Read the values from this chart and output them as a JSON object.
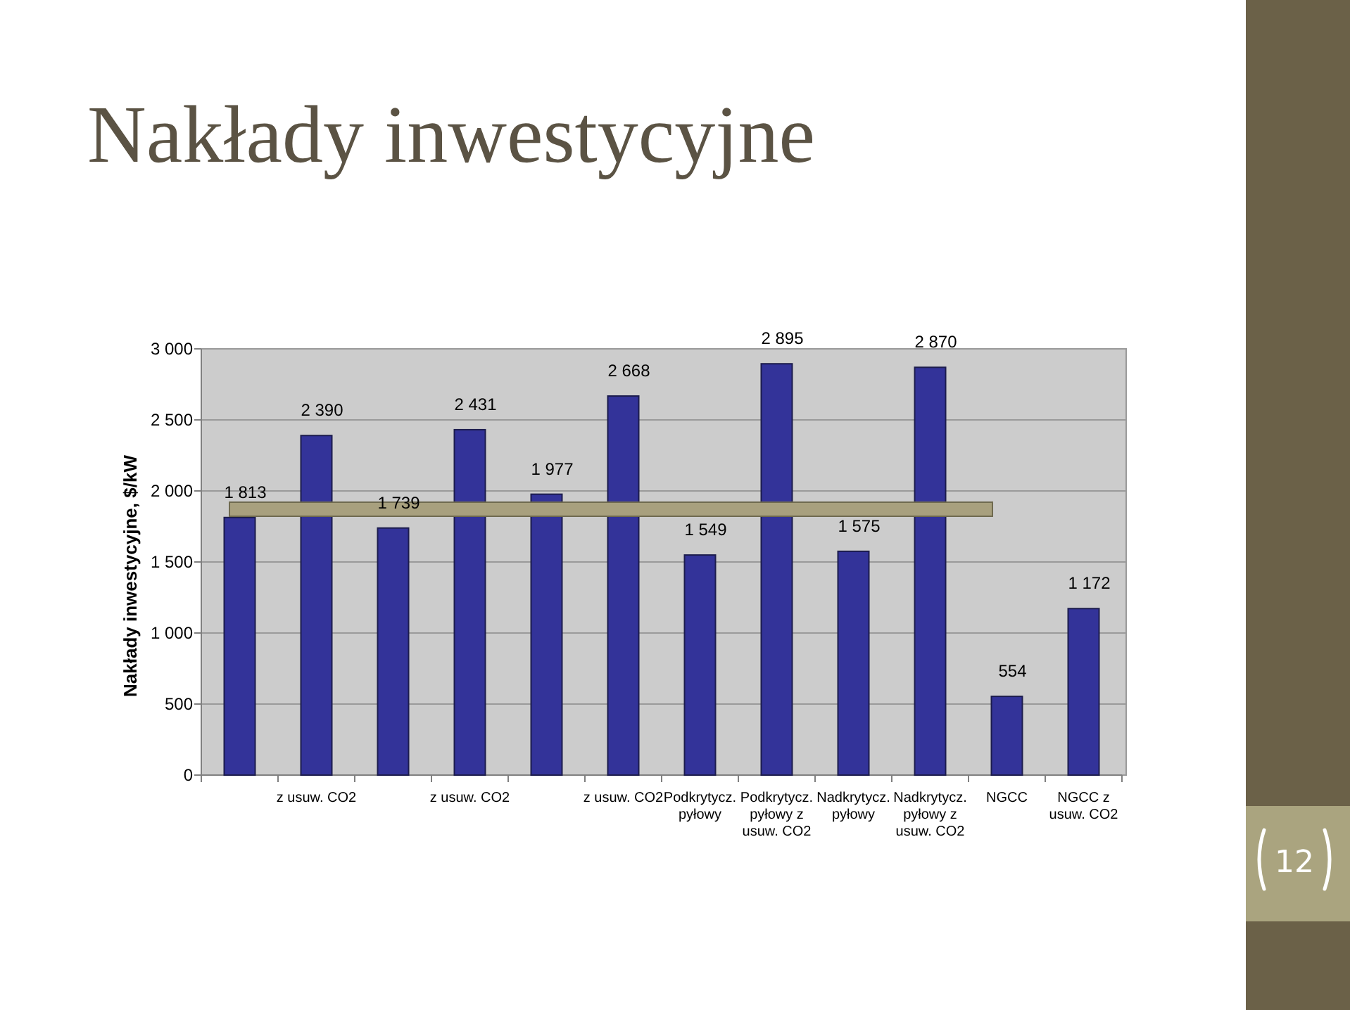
{
  "chart_data": {
    "type": "bar",
    "title": "Nakłady inwestycyjne",
    "ylabel": "Nakłady inwestycyjne, $/kW",
    "categories": [
      null,
      "z usuw. CO2",
      null,
      "z usuw. CO2",
      null,
      "z usuw. CO2",
      "Podkrytycz. pyłowy",
      "Podkrytycz. pyłowy z usuw. CO2",
      "Nadkrytycz. pyłowy",
      "Nadkrytycz. pyłowy z usuw. CO2",
      "NGCC",
      "NGCC z usuw. CO2"
    ],
    "values": [
      1813,
      2390,
      1739,
      2431,
      1977,
      2668,
      1549,
      2895,
      1575,
      2870,
      554,
      1172
    ],
    "value_labels": [
      "1 813",
      "2 390",
      "1 739",
      "2 431",
      "1 977",
      "2 668",
      "1 549",
      "2 895",
      "1 575",
      "2 870",
      "554",
      "1 172"
    ],
    "color": "#333399",
    "ylim": [
      0,
      3000
    ],
    "yticks": [
      0,
      500,
      {
        "value": 1000,
        "label": "1 000"
      },
      {
        "value": 1500,
        "label": "1 500"
      },
      {
        "value": 2000,
        "label": "2 000"
      },
      {
        "value": 2500,
        "label": "2 500"
      },
      {
        "value": 3000,
        "label": "3 000"
      }
    ],
    "grid": "y",
    "annotations": [
      "12"
    ]
  }
}
